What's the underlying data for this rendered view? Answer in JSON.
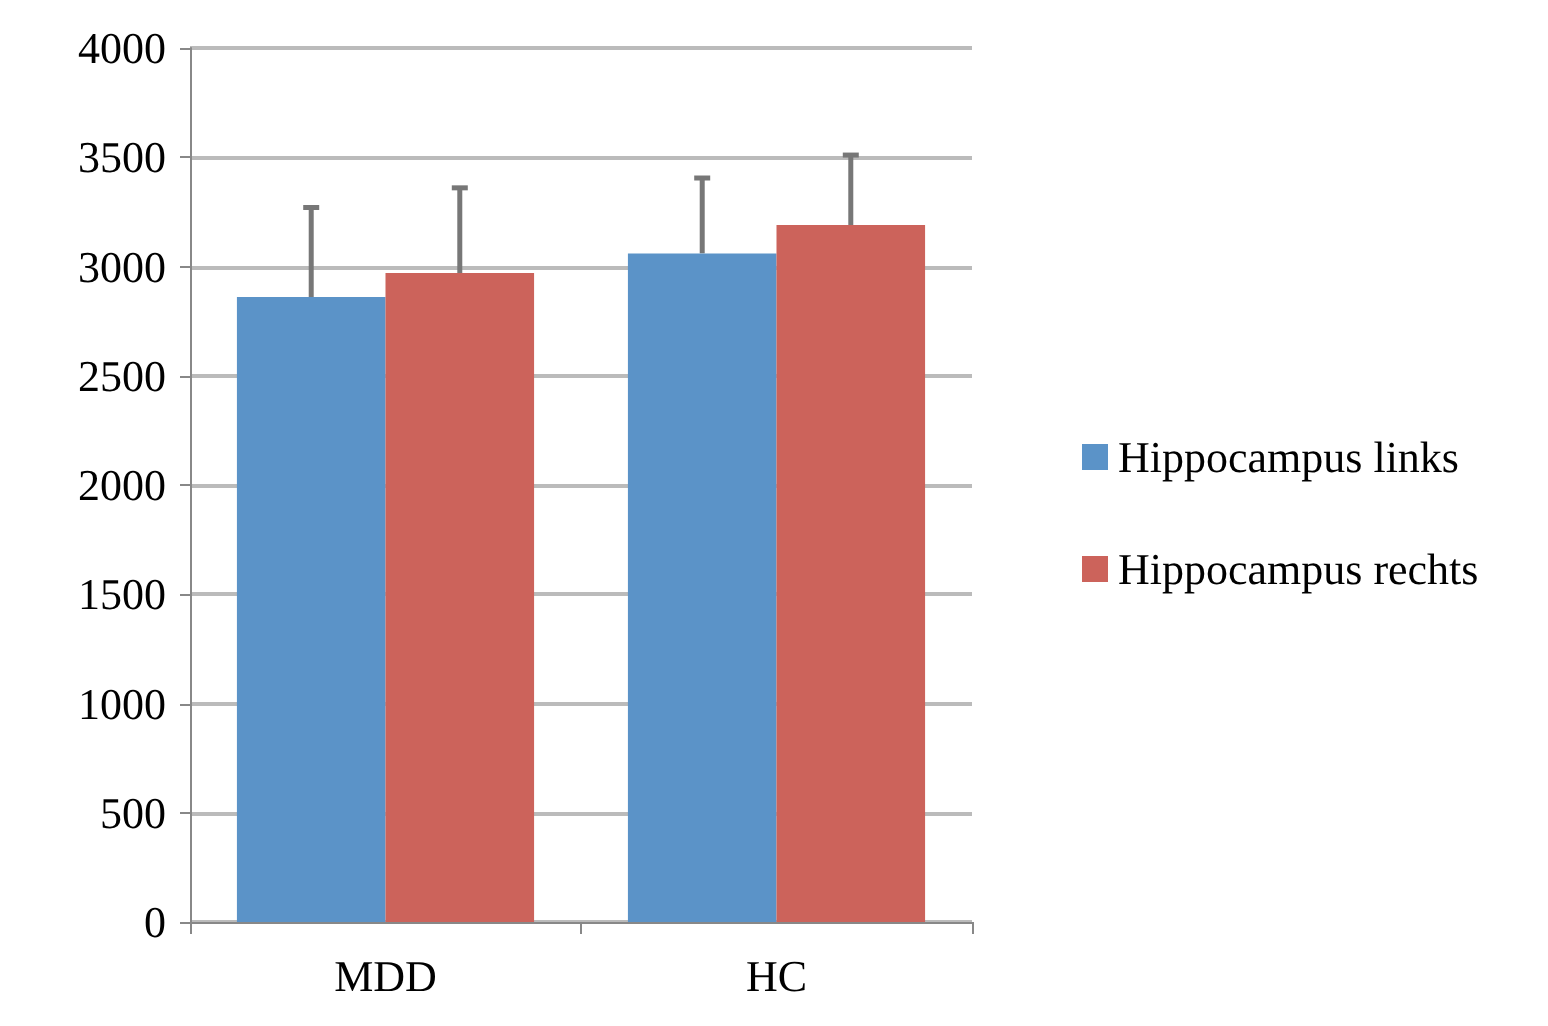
{
  "chart_data": {
    "type": "bar",
    "categories": [
      "MDD",
      "HC"
    ],
    "series": [
      {
        "name": "Hippocampus links",
        "color": "#5b93c8",
        "values": [
          2860,
          3060
        ],
        "errors": [
          [
            2860,
            3270
          ],
          [
            3060,
            3405
          ]
        ]
      },
      {
        "name": "Hippocampus rechts",
        "color": "#cc635b",
        "values": [
          2970,
          3190
        ],
        "errors": [
          [
            2970,
            3360
          ],
          [
            3190,
            3510
          ]
        ]
      }
    ],
    "ylim": [
      0,
      4000
    ],
    "yticks": [
      0,
      500,
      1000,
      1500,
      2000,
      2500,
      3000,
      3500,
      4000
    ],
    "grid": "y",
    "legend": "right"
  }
}
